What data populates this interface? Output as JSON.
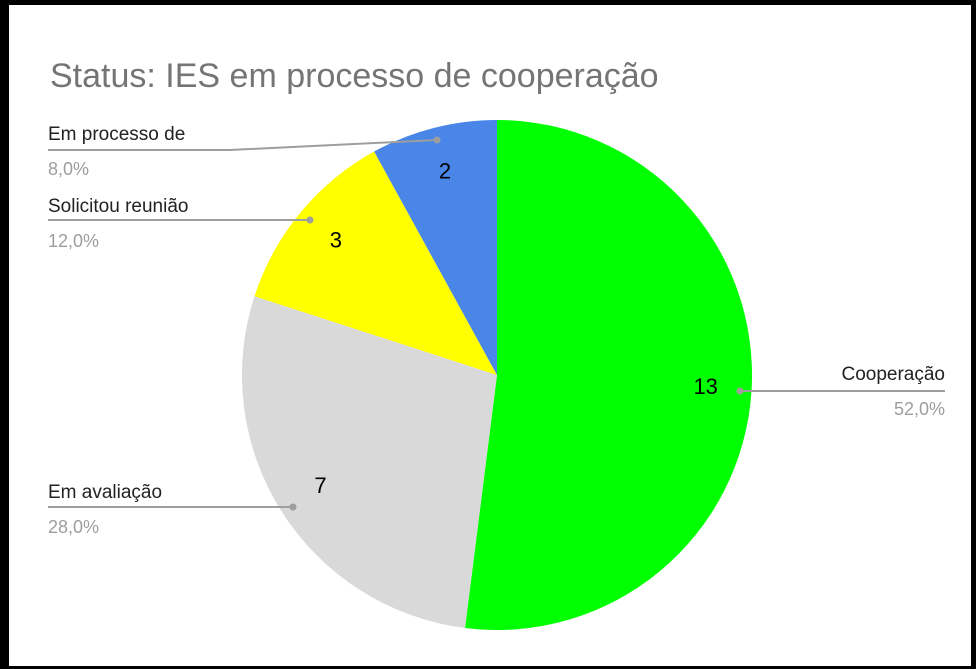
{
  "chart_data": {
    "type": "pie",
    "title": "Status: IES em processo de cooperação",
    "categories": [
      "Cooperação",
      "Em avaliação",
      "Solicitou reunião",
      "Em processo de"
    ],
    "values": [
      13,
      7,
      3,
      2
    ],
    "percentages": [
      52.0,
      28.0,
      12.0,
      8.0
    ],
    "percentage_labels": [
      "52,0%",
      "28,0%",
      "12,0%",
      "8,0%"
    ],
    "colors": [
      "#00ff00",
      "#d9d9d9",
      "#ffff00",
      "#4a86e8"
    ]
  }
}
